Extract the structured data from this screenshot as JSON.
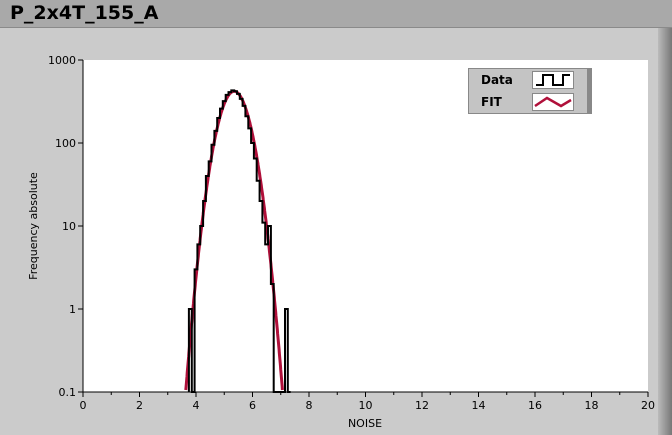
{
  "window": {
    "title": "P_2x4T_155_A"
  },
  "chart_data": {
    "type": "line",
    "title": "",
    "xlabel": "NOISE",
    "ylabel": "Frequency absolute",
    "xlim": [
      0,
      20
    ],
    "ylim": [
      0.1,
      1000
    ],
    "yscale": "log",
    "grid": false,
    "legend_placement": "top-right",
    "x_ticks": [
      "0",
      "2",
      "4",
      "6",
      "8",
      "10",
      "12",
      "14",
      "16",
      "18",
      "20"
    ],
    "y_ticks": [
      "0.1",
      "1",
      "10",
      "100",
      "1000"
    ],
    "series": [
      {
        "name": "Data",
        "color": "#000000",
        "style": "step",
        "x": [
          3.8,
          3.9,
          4.0,
          4.1,
          4.2,
          4.3,
          4.4,
          4.5,
          4.6,
          4.7,
          4.8,
          4.9,
          5.0,
          5.1,
          5.2,
          5.3,
          5.4,
          5.5,
          5.6,
          5.7,
          5.8,
          5.9,
          6.0,
          6.1,
          6.2,
          6.3,
          6.4,
          6.5,
          6.6,
          6.7,
          6.8,
          6.9,
          7.0,
          7.1,
          7.2,
          7.3
        ],
        "values": [
          1,
          0,
          3,
          6,
          10,
          20,
          40,
          60,
          95,
          140,
          200,
          260,
          320,
          380,
          410,
          430,
          420,
          390,
          340,
          280,
          210,
          150,
          100,
          65,
          35,
          20,
          11,
          6,
          10,
          2,
          0,
          0,
          0,
          0,
          1,
          0
        ]
      },
      {
        "name": "FIT",
        "color": "#b0103a",
        "style": "line",
        "function": "gaussian",
        "amplitude": 420,
        "mean": 5.35,
        "sigma": 0.42
      }
    ]
  }
}
